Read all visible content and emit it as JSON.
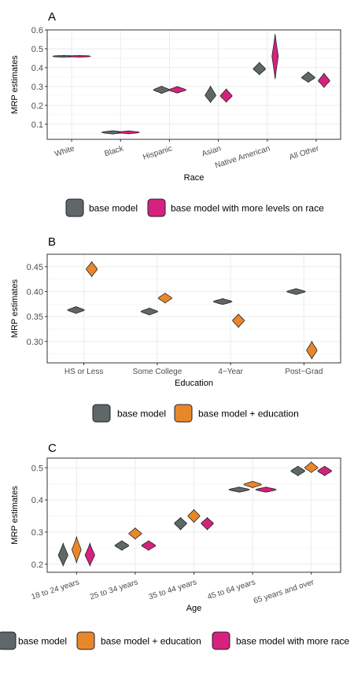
{
  "colors": {
    "base": "#5f6768",
    "education": "#e8872a",
    "race": "#d6217e"
  },
  "chart_data": [
    {
      "panel": "A",
      "type": "violin",
      "xlabel": "Race",
      "ylabel": "MRP estimates",
      "ylim": [
        0.02,
        0.6
      ],
      "yticks": [
        0.1,
        0.2,
        0.3,
        0.4,
        0.5,
        0.6
      ],
      "yticklabels": [
        "0.1",
        "0.2",
        "0.3",
        "0.4",
        "0.5",
        "0.6"
      ],
      "categories": [
        "White",
        "Black",
        "Hispanic",
        "Asian",
        "Native American",
        "All Other"
      ],
      "series": [
        {
          "name": "base model",
          "color": "base",
          "values": [
            0.46,
            0.057,
            0.282,
            0.253,
            0.393,
            0.347
          ],
          "min": [
            0.455,
            0.048,
            0.263,
            0.215,
            0.362,
            0.322
          ],
          "max": [
            0.465,
            0.066,
            0.302,
            0.302,
            0.428,
            0.377
          ]
        },
        {
          "name": "base model with more levels on race",
          "color": "race",
          "values": [
            0.46,
            0.057,
            0.282,
            0.25,
            0.46,
            0.33
          ],
          "min": [
            0.455,
            0.049,
            0.265,
            0.217,
            0.34,
            0.295
          ],
          "max": [
            0.465,
            0.065,
            0.3,
            0.287,
            0.578,
            0.37
          ]
        }
      ],
      "legend": [
        "base model",
        "base model with more levels on race"
      ]
    },
    {
      "panel": "B",
      "type": "violin",
      "xlabel": "Education",
      "ylabel": "MRP estimates",
      "ylim": [
        0.257,
        0.475
      ],
      "yticks": [
        0.3,
        0.35,
        0.4,
        0.45
      ],
      "yticklabels": [
        "0.30",
        "0.35",
        "0.40",
        "0.45"
      ],
      "categories": [
        "HS or Less",
        "Some College",
        "4−Year",
        "Post−Grad"
      ],
      "series": [
        {
          "name": "base model",
          "color": "base",
          "values": [
            0.363,
            0.36,
            0.38,
            0.4
          ],
          "min": [
            0.356,
            0.353,
            0.374,
            0.394
          ],
          "max": [
            0.37,
            0.367,
            0.386,
            0.406
          ]
        },
        {
          "name": "base model + education",
          "color": "education",
          "values": [
            0.445,
            0.387,
            0.342,
            0.282
          ],
          "min": [
            0.43,
            0.377,
            0.328,
            0.265
          ],
          "max": [
            0.46,
            0.397,
            0.355,
            0.3
          ]
        }
      ],
      "legend": [
        "base model",
        "base model + education"
      ]
    },
    {
      "panel": "C",
      "type": "violin",
      "xlabel": "Age",
      "ylabel": "MRP estimates",
      "ylim": [
        0.175,
        0.53
      ],
      "yticks": [
        0.2,
        0.3,
        0.4,
        0.5
      ],
      "yticklabels": [
        "0.2",
        "0.3",
        "0.4",
        "0.5"
      ],
      "categories": [
        "18 to 24 years",
        "25 to 34 years",
        "35 to 44 years",
        "45 to 64 years",
        "65 years and over"
      ],
      "series": [
        {
          "name": "base model",
          "color": "base",
          "values": [
            0.228,
            0.258,
            0.327,
            0.432,
            0.49
          ],
          "min": [
            0.195,
            0.243,
            0.307,
            0.424,
            0.475
          ],
          "max": [
            0.265,
            0.273,
            0.345,
            0.44,
            0.505
          ]
        },
        {
          "name": "base model + education",
          "color": "education",
          "values": [
            0.245,
            0.295,
            0.35,
            0.448,
            0.5
          ],
          "min": [
            0.205,
            0.278,
            0.33,
            0.438,
            0.485
          ],
          "max": [
            0.285,
            0.313,
            0.37,
            0.458,
            0.518
          ]
        },
        {
          "name": "base model with more race",
          "color": "race",
          "values": [
            0.228,
            0.258,
            0.327,
            0.432,
            0.49
          ],
          "min": [
            0.195,
            0.243,
            0.307,
            0.424,
            0.475
          ],
          "max": [
            0.265,
            0.273,
            0.345,
            0.44,
            0.505
          ]
        }
      ],
      "legend": [
        "base model",
        "base model + education",
        "base model with more race"
      ]
    }
  ]
}
